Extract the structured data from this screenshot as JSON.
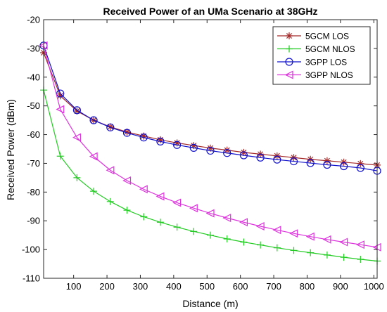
{
  "chart_data": {
    "type": "line",
    "title": "Received Power of an UMa Scenario at 38GHz",
    "xlabel": "Distance (m)",
    "ylabel": "Received Power (dBm)",
    "xlim": [
      10,
      1010
    ],
    "ylim": [
      -110,
      -20
    ],
    "xticks": [
      100,
      200,
      300,
      400,
      500,
      600,
      700,
      800,
      900,
      1000
    ],
    "yticks": [
      -110,
      -100,
      -90,
      -80,
      -70,
      -60,
      -50,
      -40,
      -30,
      -20
    ],
    "grid": false,
    "legend_position": "top-right",
    "x": [
      10,
      60,
      110,
      160,
      210,
      260,
      310,
      360,
      410,
      460,
      510,
      560,
      610,
      660,
      710,
      760,
      810,
      860,
      910,
      960,
      1010
    ],
    "series": [
      {
        "name": "5GCM LOS",
        "color": "#a52a2a",
        "marker": "asterisk",
        "values": [
          -31.5,
          -46.5,
          -51.8,
          -55.0,
          -57.3,
          -59.1,
          -60.5,
          -61.8,
          -62.9,
          -63.8,
          -64.7,
          -65.4,
          -66.2,
          -66.8,
          -67.4,
          -68.0,
          -68.6,
          -69.1,
          -69.6,
          -70.1,
          -70.6
        ]
      },
      {
        "name": "5GCM NLOS",
        "color": "#22cc22",
        "marker": "plus",
        "values": [
          -44.5,
          -67.5,
          -75.0,
          -79.7,
          -83.3,
          -86.3,
          -88.6,
          -90.5,
          -92.2,
          -93.7,
          -95.0,
          -96.3,
          -97.4,
          -98.4,
          -99.4,
          -100.3,
          -101.1,
          -101.9,
          -102.7,
          -103.4,
          -104.0
        ]
      },
      {
        "name": "3GPP LOS",
        "color": "#1111cc",
        "marker": "circle",
        "values": [
          -29.0,
          -45.7,
          -51.5,
          -55.0,
          -57.5,
          -59.4,
          -61.0,
          -62.4,
          -63.6,
          -64.6,
          -65.6,
          -66.4,
          -67.2,
          -68.0,
          -68.7,
          -69.3,
          -69.9,
          -70.5,
          -71.0,
          -71.6,
          -72.6
        ]
      },
      {
        "name": "3GPP NLOS",
        "color": "#dd33dd",
        "marker": "triangle-left",
        "values": [
          -29.0,
          -51.2,
          -61.0,
          -67.6,
          -72.4,
          -76.0,
          -79.0,
          -81.5,
          -83.7,
          -85.6,
          -87.4,
          -89.0,
          -90.5,
          -91.9,
          -93.2,
          -94.4,
          -95.5,
          -96.5,
          -97.4,
          -98.3,
          -99.2
        ]
      }
    ]
  }
}
